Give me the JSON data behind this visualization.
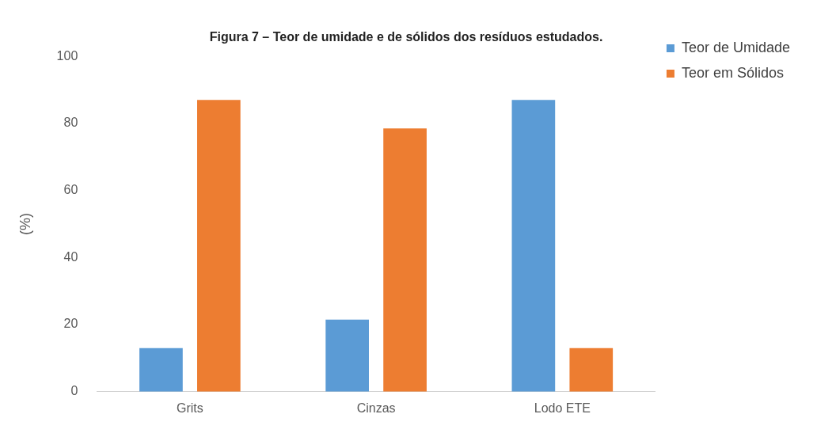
{
  "chart_data": {
    "type": "bar",
    "title": "Figura 7 – Teor de umidade e de sólidos dos resíduos estudados.",
    "ylabel": "(%)",
    "categories": [
      "Grits",
      "Cinzas",
      "Lodo ETE"
    ],
    "series": [
      {
        "name": "Teor de Umidade",
        "color": "#5b9bd5",
        "values": [
          13,
          21.5,
          87
        ]
      },
      {
        "name": "Teor em Sólidos",
        "color": "#ed7d31",
        "values": [
          87,
          78.5,
          13
        ]
      }
    ],
    "ylim": [
      0,
      100
    ],
    "yticks": [
      0,
      20,
      40,
      60,
      80,
      100
    ],
    "grid": false,
    "legend": "top right"
  }
}
